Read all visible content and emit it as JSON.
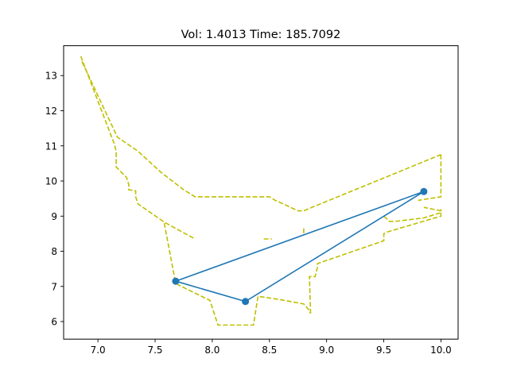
{
  "chart_data": {
    "type": "line",
    "title": "Vol:    1.4013 Time:  185.7092",
    "xlabel": "",
    "ylabel": "",
    "xlim": [
      6.7,
      10.15
    ],
    "ylim": [
      5.5,
      13.85
    ],
    "grid": false,
    "xticks": [
      7.0,
      7.5,
      8.0,
      8.5,
      9.0,
      9.5,
      10.0
    ],
    "xtick_labels": [
      "7.0",
      "7.5",
      "8.0",
      "8.5",
      "9.0",
      "9.5",
      "10.0"
    ],
    "yticks": [
      6,
      7,
      8,
      9,
      10,
      11,
      12,
      13
    ],
    "ytick_labels": [
      "6",
      "7",
      "8",
      "9",
      "10",
      "11",
      "12",
      "13"
    ],
    "series": [
      {
        "style": "solid",
        "color": "#1f77b4",
        "markers": true,
        "x": [
          7.68,
          8.29,
          9.85,
          7.68
        ],
        "y": [
          7.15,
          6.57,
          9.7,
          7.15
        ]
      },
      {
        "style": "dashed",
        "color": "#bfbf00",
        "markers": false,
        "segments": [
          {
            "x": [
              6.85,
              7.14,
              7.16,
              7.16,
              7.25,
              7.27,
              7.27,
              7.33,
              7.33,
              7.35,
              7.58,
              7.68,
              7.85
            ],
            "y": [
              13.55,
              11.08,
              10.85,
              10.4,
              10.1,
              9.9,
              9.75,
              9.72,
              9.55,
              9.35,
              8.83,
              8.65,
              8.35
            ]
          },
          {
            "x": [
              6.86,
              7.17,
              7.35,
              7.55,
              7.75,
              7.85,
              8.45,
              8.5,
              8.55,
              8.62,
              8.75,
              8.8,
              8.85,
              10.0
            ],
            "y": [
              13.4,
              11.25,
              10.85,
              10.25,
              9.75,
              9.55,
              9.55,
              9.55,
              9.45,
              9.35,
              9.15,
              9.15,
              9.22,
              10.75
            ]
          },
          {
            "x": [
              7.58,
              7.67,
              7.7,
              7.98,
              8.05,
              8.36,
              8.4,
              8.6,
              8.8,
              8.84,
              8.86,
              8.86
            ],
            "y": [
              8.8,
              7.25,
              7.05,
              6.6,
              5.9,
              5.9,
              6.72,
              6.62,
              6.5,
              6.35,
              6.23,
              6.23
            ]
          },
          {
            "x": [
              8.86,
              8.85,
              8.9,
              8.92,
              8.92,
              9.5,
              9.5,
              9.53,
              10.0,
              10.0
            ],
            "y": [
              6.23,
              7.28,
              7.28,
              7.55,
              7.65,
              8.3,
              8.5,
              8.55,
              9.0,
              9.2
            ]
          },
          {
            "x": [
              9.5,
              9.55,
              9.6,
              9.85,
              10.0,
              10.0,
              9.85
            ],
            "y": [
              9.0,
              8.85,
              8.85,
              8.95,
              9.1,
              9.15,
              9.25
            ]
          },
          {
            "x": [
              10.0,
              10.0,
              10.0,
              9.8
            ],
            "y": [
              10.75,
              10.25,
              9.55,
              9.45
            ]
          },
          {
            "x": [
              8.45,
              8.52
            ],
            "y": [
              8.35,
              8.35
            ]
          },
          {
            "x": [
              8.8,
              8.8
            ],
            "y": [
              8.65,
              8.5
            ]
          }
        ]
      }
    ]
  }
}
